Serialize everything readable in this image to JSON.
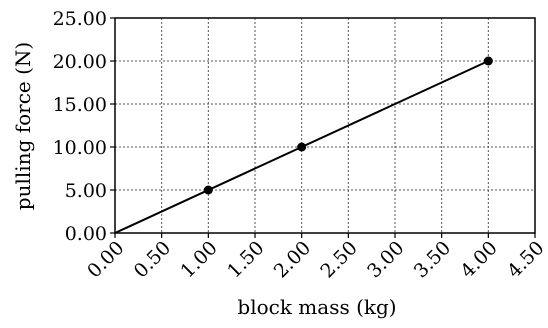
{
  "chart_data": {
    "type": "scatter",
    "title": "",
    "xlabel": "block mass (kg)",
    "ylabel": "pulling force (N)",
    "xlim": [
      0,
      4.5
    ],
    "ylim": [
      0,
      25
    ],
    "x_ticks": [
      "0.00",
      "0.50",
      "1.00",
      "1.50",
      "2.00",
      "2.50",
      "3.00",
      "3.50",
      "4.00",
      "4.50"
    ],
    "y_ticks": [
      "0.00",
      "5.00",
      "10.00",
      "15.00",
      "20.00",
      "25.00"
    ],
    "grid": true,
    "legend": "none",
    "points": [
      {
        "x": 1.0,
        "y": 5.0
      },
      {
        "x": 2.0,
        "y": 10.0
      },
      {
        "x": 4.0,
        "y": 20.0
      }
    ],
    "fit_line": {
      "x": [
        0,
        4.0
      ],
      "y": [
        0,
        20.0
      ]
    }
  }
}
